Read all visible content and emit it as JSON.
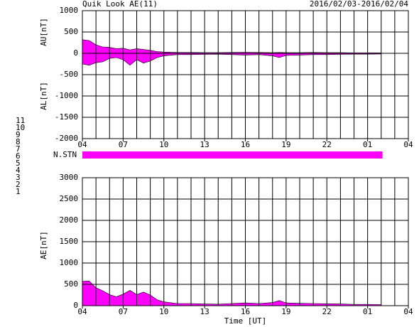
{
  "chart_data": [
    {
      "type": "area",
      "title": "Quik Look AE(11)",
      "subtitle": "2016/02/03-2016/02/04",
      "y_labels": [
        "AU[nT]",
        "AL[nT]"
      ],
      "x": [
        0,
        0.5,
        1,
        1.5,
        2,
        2.5,
        3,
        3.5,
        4,
        4.5,
        5,
        5.5,
        6,
        7,
        8,
        9,
        10,
        11,
        12,
        13,
        14,
        14.5,
        15,
        16,
        17,
        18,
        19,
        20,
        21,
        22
      ],
      "xlim": [
        0,
        24
      ],
      "xticks": [
        {
          "value": 0,
          "label": "04"
        },
        {
          "value": 3,
          "label": "07"
        },
        {
          "value": 6,
          "label": "10"
        },
        {
          "value": 9,
          "label": "13"
        },
        {
          "value": 12,
          "label": "16"
        },
        {
          "value": 15,
          "label": "19"
        },
        {
          "value": 18,
          "label": "22"
        },
        {
          "value": 21,
          "label": "01"
        },
        {
          "value": 24,
          "label": "04"
        }
      ],
      "ylim": [
        -2000,
        1000
      ],
      "yticks": [
        -2000,
        -1500,
        -1000,
        -500,
        0,
        500,
        1000
      ],
      "grid": true,
      "series": [
        {
          "color": "#ff00ff",
          "values": [
            320,
            300,
            200,
            150,
            140,
            110,
            120,
            80,
            110,
            90,
            70,
            40,
            30,
            20,
            20,
            15,
            15,
            20,
            25,
            20,
            15,
            20,
            15,
            15,
            20,
            15,
            15,
            10,
            10,
            10
          ]
        },
        {
          "color": "#ff00ff",
          "values": [
            -250,
            -280,
            -220,
            -200,
            -120,
            -100,
            -150,
            -280,
            -150,
            -230,
            -180,
            -100,
            -60,
            -30,
            -30,
            -25,
            -20,
            -30,
            -40,
            -30,
            -60,
            -100,
            -50,
            -40,
            -30,
            -30,
            -25,
            -20,
            -20,
            -15
          ]
        }
      ]
    },
    {
      "type": "area",
      "ylabel": "AE[nT]",
      "xlabel": "Time [UT]",
      "x": [
        0,
        0.5,
        1,
        1.5,
        2,
        2.5,
        3,
        3.5,
        4,
        4.5,
        5,
        5.5,
        6,
        7,
        8,
        9,
        10,
        11,
        12,
        13,
        14,
        14.5,
        15,
        16,
        17,
        18,
        19,
        20,
        21,
        22
      ],
      "xlim": [
        0,
        24
      ],
      "xticks": [
        {
          "value": 0,
          "label": "04"
        },
        {
          "value": 3,
          "label": "07"
        },
        {
          "value": 6,
          "label": "10"
        },
        {
          "value": 9,
          "label": "13"
        },
        {
          "value": 12,
          "label": "16"
        },
        {
          "value": 15,
          "label": "19"
        },
        {
          "value": 18,
          "label": "22"
        },
        {
          "value": 21,
          "label": "01"
        },
        {
          "value": 24,
          "label": "04"
        }
      ],
      "ylim": [
        0,
        3000
      ],
      "yticks": [
        0,
        500,
        1000,
        1500,
        2000,
        2500,
        3000
      ],
      "grid": true,
      "series": [
        {
          "color": "#ff00ff",
          "values": [
            570,
            580,
            420,
            350,
            260,
            210,
            270,
            360,
            260,
            320,
            250,
            140,
            90,
            50,
            50,
            40,
            35,
            50,
            65,
            50,
            75,
            120,
            65,
            55,
            50,
            45,
            40,
            30,
            30,
            25
          ]
        }
      ]
    }
  ],
  "station_bar": {
    "label": "N.STN",
    "color": "#ff00ff",
    "start": 0,
    "end": 22.1
  },
  "station_numbers": [
    {
      "label": "11",
      "color": "#00e0e0"
    },
    {
      "label": "10",
      "color": "#ff00ff"
    },
    {
      "label": "9",
      "color": "#0000ff"
    },
    {
      "label": "8",
      "color": "#e0e000"
    },
    {
      "label": "7",
      "color": "#80e080"
    },
    {
      "label": "6",
      "color": "#ff0000"
    },
    {
      "label": "5",
      "color": "#c0c0c0"
    },
    {
      "label": "4",
      "color": "#808080"
    },
    {
      "label": "3",
      "color": "#008080"
    },
    {
      "label": "2",
      "color": "#800080"
    },
    {
      "label": "1",
      "color": "#000080"
    }
  ]
}
